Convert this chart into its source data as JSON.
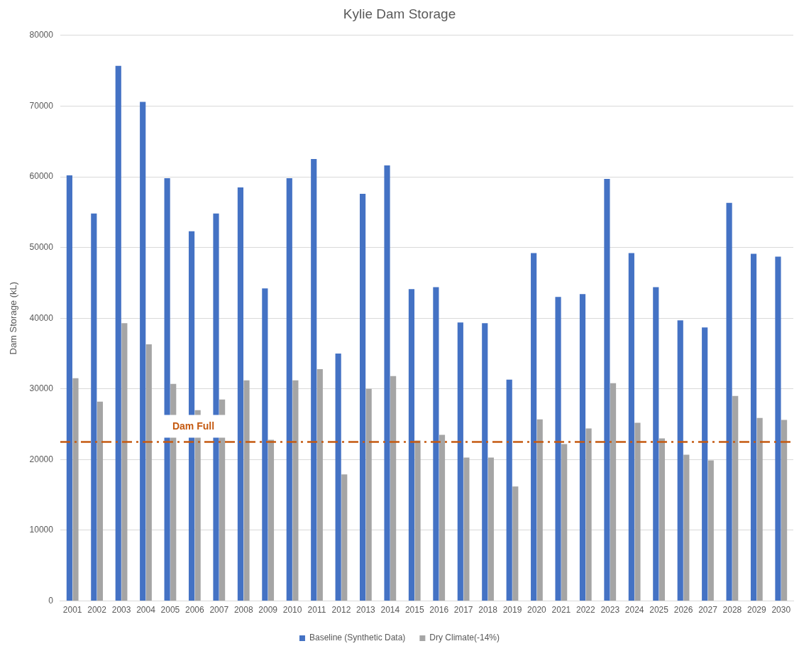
{
  "chart_data": {
    "type": "bar",
    "title": "Kylie Dam Storage",
    "ylabel": "Dam Storage (kL)",
    "categories": [
      "2001",
      "2002",
      "2003",
      "2004",
      "2005",
      "2006",
      "2007",
      "2008",
      "2009",
      "2010",
      "2011",
      "2012",
      "2013",
      "2014",
      "2015",
      "2016",
      "2017",
      "2018",
      "2019",
      "2020",
      "2021",
      "2022",
      "2023",
      "2024",
      "2025",
      "2026",
      "2027",
      "2028",
      "2029",
      "2030"
    ],
    "series": [
      {
        "name": "Baseline (Synthetic Data)",
        "color": "#4472c4",
        "values": [
          60200,
          54800,
          75700,
          70600,
          59800,
          52300,
          54800,
          58500,
          44200,
          59800,
          62500,
          35000,
          57600,
          61600,
          44100,
          44400,
          39400,
          39300,
          31300,
          49200,
          43000,
          43400,
          59700,
          49200,
          44400,
          39700,
          38700,
          56300,
          49100,
          48700
        ]
      },
      {
        "name": "Dry Climate(-14%)",
        "color": "#a5a5a5",
        "values": [
          31500,
          28200,
          39300,
          36300,
          30700,
          27000,
          28500,
          31200,
          22800,
          31200,
          32800,
          17900,
          30000,
          31800,
          22700,
          23500,
          20300,
          20300,
          16200,
          25700,
          22200,
          24400,
          30800,
          25200,
          23000,
          20700,
          19900,
          29000,
          25900,
          25600
        ]
      }
    ],
    "ylim": [
      0,
      80000
    ],
    "yticks": [
      0,
      10000,
      20000,
      30000,
      40000,
      50000,
      60000,
      70000,
      80000
    ],
    "ref_lines": [
      {
        "axis": "y",
        "value": 22500,
        "label": "Dam Full",
        "color": "#c55a11",
        "line_style": "dashed"
      }
    ],
    "grid": "y",
    "legend": "bottom"
  }
}
